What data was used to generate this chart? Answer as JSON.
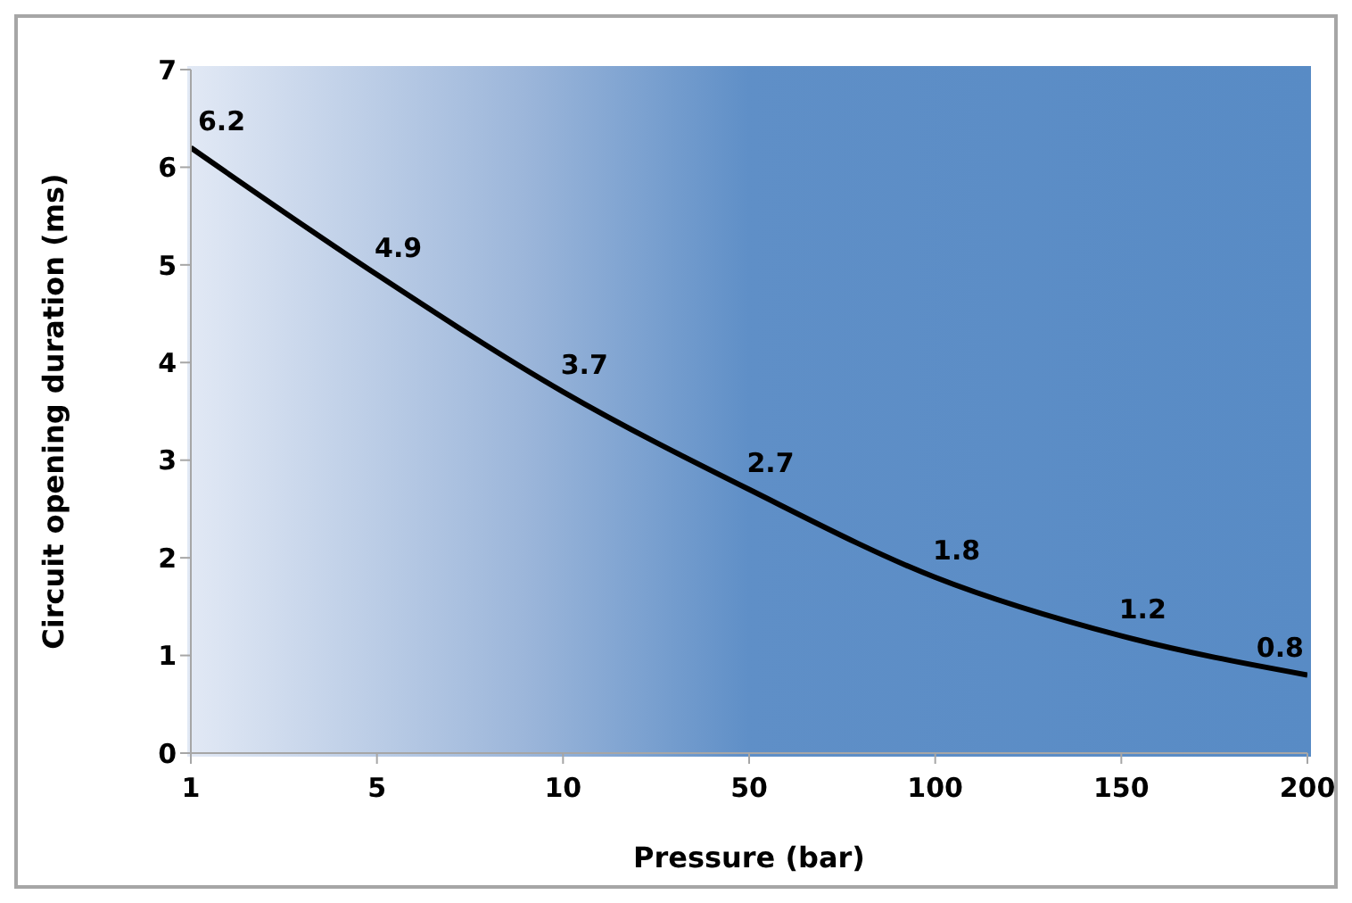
{
  "chart_data": {
    "type": "line",
    "xlabel": "Pressure (bar)",
    "ylabel": "Circuit opening duration (ms)",
    "categories": [
      "1",
      "5",
      "10",
      "50",
      "100",
      "150",
      "200"
    ],
    "series": [
      {
        "color": "#000000",
        "values": [
          6.2,
          4.9,
          3.7,
          2.7,
          1.8,
          1.2,
          0.8
        ]
      }
    ],
    "ylim": [
      0,
      7
    ],
    "yticks": [
      0,
      1,
      2,
      3,
      4,
      5,
      6,
      7
    ],
    "grid": false,
    "marker": "none",
    "line_style": "solid",
    "data_labels": true
  }
}
